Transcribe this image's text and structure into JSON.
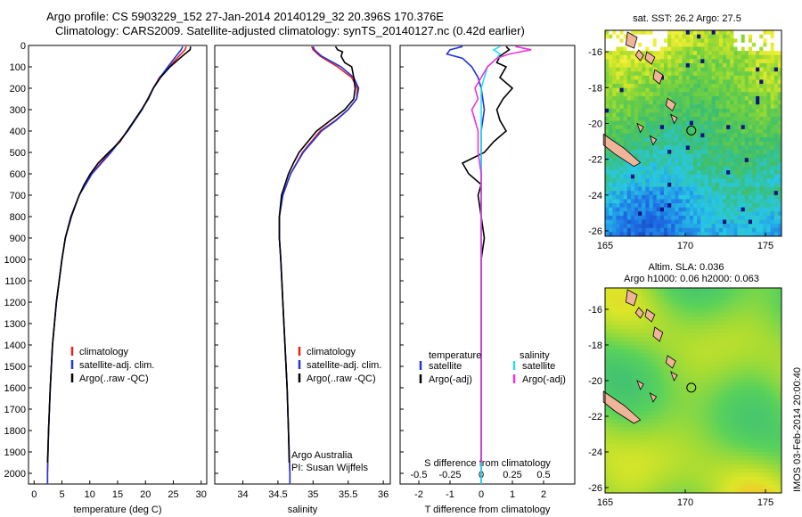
{
  "header": {
    "title_line1": "Argo profile: CS 5903229_152 27-Jan-2014 20140129_32 20.396S 170.376E",
    "title_line2": "Climatology: CARS2009. Satellite-adjusted climatology: synTS_20140127.nc (0.42d earlier)"
  },
  "footer": {
    "credit": "IMOS 03-Feb-2014 20:00:40"
  },
  "colors": {
    "climatology": "#e8201c",
    "satellite": "#2233dd",
    "argo": "#000000",
    "satellite_sal": "#22e0f0",
    "argo_sal": "#ee33dd"
  },
  "chart_data": [
    {
      "type": "line",
      "id": "temperature",
      "xlabel": "temperature (deg C)",
      "ylabel": "",
      "xlim": [
        -1,
        31
      ],
      "ylim": [
        2050,
        0
      ],
      "xticks": [
        0,
        5,
        10,
        15,
        20,
        25,
        30
      ],
      "yticks": [
        0,
        100,
        200,
        300,
        400,
        500,
        600,
        700,
        800,
        900,
        1000,
        1100,
        1200,
        1300,
        1400,
        1500,
        1600,
        1700,
        1800,
        1900,
        2000
      ],
      "legend": [
        "climatology",
        "satellite-adj. clim.",
        "Argo(..raw -QC)"
      ],
      "series": [
        {
          "name": "climatology",
          "color": "#e8201c",
          "depth": [
            5,
            20,
            50,
            100,
            150,
            200,
            250,
            300,
            400,
            500,
            600,
            700,
            800,
            900,
            1000,
            1200,
            1400,
            1600,
            1800,
            2000,
            2050
          ],
          "values": [
            27.3,
            27.1,
            26,
            24.3,
            22.5,
            21.4,
            20.4,
            19.3,
            16.8,
            13.6,
            10.3,
            8.1,
            6.6,
            5.6,
            5.0,
            4.0,
            3.3,
            2.9,
            2.6,
            2.4,
            2.4
          ]
        },
        {
          "name": "satellite-adj. clim.",
          "color": "#2233dd",
          "depth": [
            5,
            20,
            50,
            100,
            150,
            200,
            250,
            300,
            400,
            500,
            600,
            700,
            800,
            900,
            1000,
            1200,
            1400,
            1600,
            1800,
            2000,
            2050
          ],
          "values": [
            26.7,
            26.4,
            25.5,
            24.0,
            22.6,
            21.4,
            20.4,
            19.4,
            16.8,
            13.8,
            10.4,
            8.1,
            6.6,
            5.6,
            5.0,
            4.0,
            3.3,
            2.9,
            2.6,
            2.4,
            2.4
          ]
        },
        {
          "name": "Argo(..raw -QC)",
          "color": "#000000",
          "depth": [
            5,
            20,
            50,
            100,
            150,
            200,
            250,
            300,
            400,
            450,
            500,
            550,
            600,
            650,
            700,
            800,
            900,
            1000,
            1200,
            1400,
            1600,
            1800,
            1950
          ],
          "values": [
            28.1,
            28.0,
            26.6,
            24.4,
            22.7,
            21.4,
            20.5,
            19.3,
            16.7,
            15.4,
            13.4,
            11.5,
            10.1,
            9.0,
            8.1,
            6.7,
            5.6,
            5.0,
            4.0,
            3.3,
            2.9,
            2.6,
            2.4
          ]
        }
      ]
    },
    {
      "type": "line",
      "id": "salinity",
      "xlabel": "salinity",
      "ylabel": "",
      "xlim": [
        33.6,
        36.1
      ],
      "ylim": [
        2050,
        0
      ],
      "xticks": [
        34,
        34.5,
        35,
        35.5,
        36
      ],
      "legend": [
        "climatology",
        "satellite-adj. clim.",
        "Argo(..raw -QC)"
      ],
      "annotations": [
        "Argo Australia",
        "PI: Susan Wijffels"
      ],
      "series": [
        {
          "name": "climatology",
          "color": "#e8201c",
          "depth": [
            5,
            20,
            50,
            100,
            150,
            200,
            250,
            300,
            350,
            400,
            500,
            600,
            700,
            800,
            900,
            1000,
            1200,
            1400,
            1600,
            1800,
            2000,
            2050
          ],
          "values": [
            34.98,
            35.0,
            35.1,
            35.35,
            35.55,
            35.63,
            35.62,
            35.5,
            35.32,
            35.1,
            34.85,
            34.68,
            34.57,
            34.52,
            34.52,
            34.54,
            34.57,
            34.6,
            34.63,
            34.65,
            34.67,
            34.67
          ]
        },
        {
          "name": "satellite-adj. clim.",
          "color": "#2233dd",
          "depth": [
            5,
            20,
            50,
            100,
            150,
            200,
            250,
            300,
            350,
            400,
            500,
            600,
            700,
            800,
            900,
            1000,
            1200,
            1400,
            1600,
            1800,
            2000,
            2050
          ],
          "values": [
            35.0,
            35.02,
            35.12,
            35.4,
            35.58,
            35.65,
            35.62,
            35.5,
            35.33,
            35.12,
            34.86,
            34.68,
            34.57,
            34.52,
            34.52,
            34.54,
            34.57,
            34.6,
            34.63,
            34.65,
            34.67,
            34.67
          ]
        },
        {
          "name": "Argo(..raw -QC)",
          "color": "#000000",
          "depth": [
            5,
            20,
            30,
            50,
            80,
            100,
            150,
            200,
            250,
            300,
            350,
            400,
            500,
            550,
            600,
            700,
            800,
            900,
            1000,
            1200,
            1400,
            1600,
            1800,
            1950
          ],
          "values": [
            35.32,
            35.35,
            35.42,
            35.4,
            35.45,
            35.55,
            35.58,
            35.6,
            35.58,
            35.45,
            35.25,
            35.05,
            34.8,
            34.72,
            34.65,
            34.55,
            34.52,
            34.52,
            34.54,
            34.57,
            34.6,
            34.63,
            34.65,
            34.66
          ]
        }
      ]
    },
    {
      "type": "line",
      "id": "difference",
      "xlabel": "T difference from climatology",
      "xlabel2": "S difference from climatology",
      "xlim": [
        -2.6,
        3.0
      ],
      "ylim": [
        2050,
        0
      ],
      "xticks": [
        -2,
        -1,
        0,
        1,
        2
      ],
      "xticks2": [
        "-0.5",
        "-0.25",
        "0",
        "0.25",
        "0.5"
      ],
      "xticks2_pos": [
        -2,
        -1,
        0,
        1,
        2
      ],
      "legend_headers": [
        "temperature",
        "salinity"
      ],
      "legend": [
        "satellite",
        "Argo(-adj)",
        "satellite",
        "Argo(-adj)"
      ],
      "series": [
        {
          "name": "satellite",
          "color": "#2233dd",
          "depth": [
            5,
            20,
            40,
            60,
            100,
            150,
            200,
            300,
            400,
            500,
            600,
            800,
            1000,
            1500,
            2050
          ],
          "values": [
            -0.6,
            -1.0,
            -1.1,
            -0.6,
            -0.3,
            -0.1,
            0.0,
            0.1,
            0.0,
            0.0,
            0.0,
            0.0,
            0.0,
            0.0,
            0.0
          ]
        },
        {
          "name": "Argo(-adj)",
          "color": "#000000",
          "depth": [
            5,
            20,
            50,
            80,
            100,
            150,
            200,
            250,
            300,
            350,
            400,
            450,
            500,
            550,
            600,
            650,
            700,
            800,
            900,
            1000,
            1200,
            1500,
            1800,
            1950
          ],
          "values": [
            0.8,
            0.9,
            0.6,
            0.5,
            0.8,
            0.6,
            1.0,
            0.7,
            0.5,
            0.6,
            0.8,
            0.4,
            0.1,
            -0.6,
            -0.4,
            0.0,
            -0.1,
            0.0,
            0.1,
            0.0,
            0.0,
            0.0,
            0.0,
            0.0
          ]
        },
        {
          "name": "satellite",
          "color": "#22e0f0",
          "depth": [
            5,
            20,
            40,
            60,
            100,
            150,
            200,
            300,
            400,
            500,
            600,
            800,
            1000,
            1500,
            2050
          ],
          "values": [
            0.6,
            0.4,
            0.6,
            0.5,
            0.2,
            0.1,
            0.0,
            0.0,
            0.0,
            0.0,
            0.0,
            0.0,
            0.0,
            0.0,
            0.0
          ]
        },
        {
          "name": "Argo(-adj)",
          "color": "#ee33dd",
          "depth": [
            5,
            20,
            40,
            60,
            100,
            150,
            200,
            250,
            300,
            350,
            400,
            500,
            600,
            700,
            800,
            1000,
            1500,
            1950
          ],
          "values": [
            1.1,
            1.6,
            0.9,
            0.5,
            0.2,
            0.0,
            -0.2,
            -0.1,
            -0.3,
            -0.2,
            -0.1,
            -0.1,
            0.0,
            0.0,
            0.0,
            0.0,
            0.0,
            0.0
          ]
        }
      ]
    },
    {
      "type": "heatmap",
      "id": "sst_map",
      "title": "sat. SST: 26.2 Argo: 27.5",
      "xlim": [
        165,
        176
      ],
      "ylim": [
        -26.3,
        -14.8
      ],
      "xticks": [
        165,
        170,
        175
      ],
      "yticks": [
        -16,
        -18,
        -20,
        -22,
        -24,
        -26
      ],
      "marker": {
        "lon": 170.376,
        "lat": -20.396
      }
    },
    {
      "type": "heatmap",
      "id": "sla_map",
      "title": "Altim. SLA: 0.036",
      "subtitle": "Argo h1000: 0.06 h2000: 0.063",
      "xlim": [
        165,
        176
      ],
      "ylim": [
        -26.3,
        -14.8
      ],
      "xticks": [
        165,
        170,
        175
      ],
      "yticks": [
        -16,
        -18,
        -20,
        -22,
        -24,
        -26
      ],
      "marker": {
        "lon": 170.376,
        "lat": -20.396
      }
    }
  ]
}
